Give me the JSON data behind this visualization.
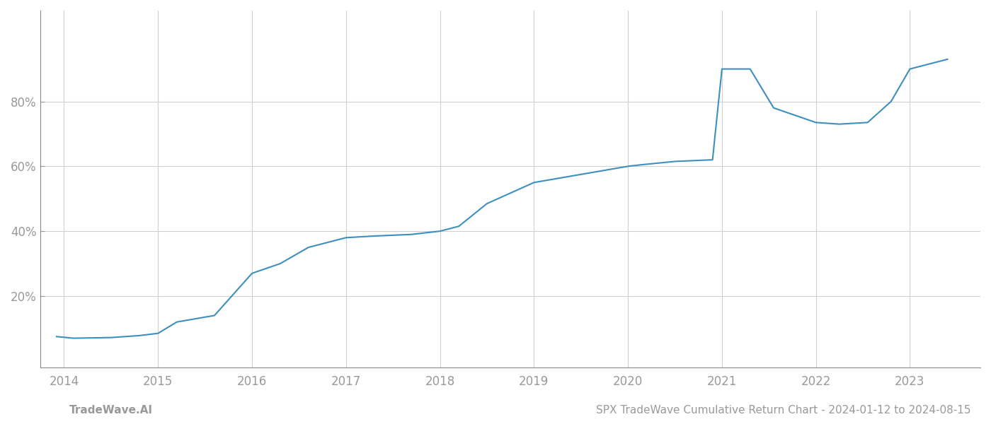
{
  "x": [
    2013.92,
    2014.1,
    2014.5,
    2014.8,
    2015.0,
    2015.2,
    2015.6,
    2016.0,
    2016.3,
    2016.6,
    2017.0,
    2017.3,
    2017.7,
    2018.0,
    2018.2,
    2018.5,
    2019.0,
    2019.4,
    2019.7,
    2020.0,
    2020.15,
    2020.5,
    2020.9,
    2021.0,
    2021.3,
    2021.55,
    2022.0,
    2022.25,
    2022.55,
    2022.8,
    2023.0,
    2023.4
  ],
  "y": [
    7.5,
    7.0,
    7.2,
    7.8,
    8.5,
    12.0,
    14.0,
    27.0,
    30.0,
    35.0,
    38.0,
    38.5,
    39.0,
    40.0,
    41.5,
    48.5,
    55.0,
    57.0,
    58.5,
    60.0,
    60.5,
    61.5,
    62.0,
    90.0,
    90.0,
    78.0,
    73.5,
    73.0,
    73.5,
    80.0,
    90.0,
    93.0
  ],
  "line_color": "#3d8fc0",
  "line_width": 1.5,
  "yticks": [
    20,
    40,
    60,
    80
  ],
  "xlim": [
    2013.75,
    2023.75
  ],
  "ylim": [
    -2,
    108
  ],
  "xticks": [
    2014,
    2015,
    2016,
    2017,
    2018,
    2019,
    2020,
    2021,
    2022,
    2023
  ],
  "background_color": "#ffffff",
  "grid_color": "#d0d0d0",
  "footer_left": "TradeWave.AI",
  "footer_right": "SPX TradeWave Cumulative Return Chart - 2024-01-12 to 2024-08-15",
  "footer_fontsize": 11,
  "tick_label_color": "#999999",
  "spine_color": "#888888"
}
